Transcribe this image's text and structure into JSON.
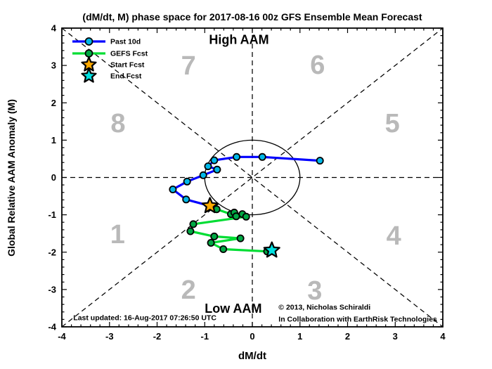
{
  "chart_data": {
    "type": "line",
    "title": "(dM/dt, M) phase space for 2017-08-16 00z GFS Ensemble Mean Forecast",
    "xlabel": "dM/dt",
    "ylabel": "Global Relative AAM Anomaly (M)",
    "xlim": [
      -4,
      4
    ],
    "ylim": [
      -4,
      4
    ],
    "xticks": [
      -4,
      -3,
      -2,
      -1,
      0,
      1,
      2,
      3,
      4
    ],
    "yticks": [
      -4,
      -3,
      -2,
      -1,
      0,
      1,
      2,
      3,
      4
    ],
    "minor_tick_step": 0.2,
    "grid": false,
    "unit_circle": {
      "cx": 0,
      "cy": 0,
      "r": 1
    },
    "reference_lines": [
      {
        "name": "zero-horizontal",
        "x1": -4,
        "y1": 0,
        "x2": 4,
        "y2": 0
      },
      {
        "name": "zero-vertical",
        "x1": 0,
        "y1": -4,
        "x2": 0,
        "y2": 4
      },
      {
        "name": "diagonal",
        "x1": -4,
        "y1": -4,
        "x2": 4,
        "y2": 4
      },
      {
        "name": "anti-diagonal",
        "x1": -4,
        "y1": 4,
        "x2": 4,
        "y2": -4
      }
    ],
    "series": [
      {
        "id": "past-10d",
        "name": "Past 10d",
        "line_color": "#0000ff",
        "marker_fill": "#00b8e8",
        "points": [
          [
            1.42,
            0.45
          ],
          [
            0.21,
            0.55
          ],
          [
            -0.33,
            0.55
          ],
          [
            -0.8,
            0.46
          ],
          [
            -0.93,
            0.3
          ],
          [
            -0.74,
            0.21
          ],
          [
            -1.03,
            0.06
          ],
          [
            -1.37,
            -0.11
          ],
          [
            -1.67,
            -0.32
          ],
          [
            -1.39,
            -0.59
          ],
          [
            -0.89,
            -0.76
          ]
        ]
      },
      {
        "id": "gefs-fcst",
        "name": "GEFS Fcst",
        "line_color": "#00dd33",
        "marker_fill": "#00a844",
        "points": [
          [
            -0.89,
            -0.76
          ],
          [
            -0.75,
            -0.85
          ],
          [
            -0.45,
            -0.98
          ],
          [
            -0.38,
            -0.94
          ],
          [
            -0.34,
            -1.04
          ],
          [
            -0.21,
            -0.98
          ],
          [
            -0.13,
            -1.05
          ],
          [
            -1.24,
            -1.25
          ],
          [
            -1.3,
            -1.44
          ],
          [
            -0.8,
            -1.58
          ],
          [
            -0.25,
            -1.63
          ],
          [
            -0.87,
            -1.75
          ],
          [
            -0.61,
            -1.92
          ],
          [
            0.31,
            -1.98
          ],
          [
            0.41,
            -1.95
          ]
        ]
      }
    ],
    "event_markers": [
      {
        "id": "start-fcst",
        "label": "Start Fcst",
        "shape": "star",
        "fill": "#ffaa00",
        "x": -0.89,
        "y": -0.76
      },
      {
        "id": "end-fcst",
        "label": "End Fcst",
        "shape": "star",
        "fill": "#00dfe0",
        "x": 0.41,
        "y": -1.95
      }
    ],
    "quadrant_labels": [
      {
        "text": "7",
        "x": -1.34,
        "y": 3.01
      },
      {
        "text": "6",
        "x": 1.37,
        "y": 3.03
      },
      {
        "text": "8",
        "x": -2.82,
        "y": 1.47
      },
      {
        "text": "5",
        "x": 2.94,
        "y": 1.47
      },
      {
        "text": "1",
        "x": -2.83,
        "y": -1.51
      },
      {
        "text": "4",
        "x": 2.97,
        "y": -1.54
      },
      {
        "text": "2",
        "x": -1.34,
        "y": -2.99
      },
      {
        "text": "3",
        "x": 1.31,
        "y": -3.01
      }
    ],
    "region_labels": [
      {
        "id": "high-aam",
        "text": "High AAM",
        "x": -0.28,
        "y": 3.58
      },
      {
        "id": "low-aam",
        "text": "Low AAM",
        "x": -0.4,
        "y": -3.62
      }
    ],
    "annotations": [
      {
        "id": "last-updated",
        "text": "Last updated: 16-Aug-2017 07:26:50 UTC",
        "x": -3.76,
        "y": -3.82
      },
      {
        "id": "copyright",
        "text": "©  2013,  Nicholas Schiraldi",
        "x": 0.55,
        "y": -3.54
      },
      {
        "id": "collaboration",
        "text": "In Collaboration with EarthRisk Technologies",
        "x": 0.55,
        "y": -3.86
      }
    ],
    "legend": {
      "position": "top-left",
      "items": [
        {
          "label": "Past 10d",
          "swatch": "line-circle",
          "line_color": "#0000ff",
          "marker_fill": "#00b8e8"
        },
        {
          "label": "GEFS Fcst",
          "swatch": "line-circle",
          "line_color": "#00dd33",
          "marker_fill": "#00a844"
        },
        {
          "label": "Start Fcst",
          "swatch": "star",
          "fill": "#ffaa00"
        },
        {
          "label": "End Fcst",
          "swatch": "star",
          "fill": "#00dfe0"
        }
      ]
    },
    "colors": {
      "frame": "#000000",
      "quadrant_number": "#b9b9b9",
      "background": "#ffffff"
    }
  }
}
